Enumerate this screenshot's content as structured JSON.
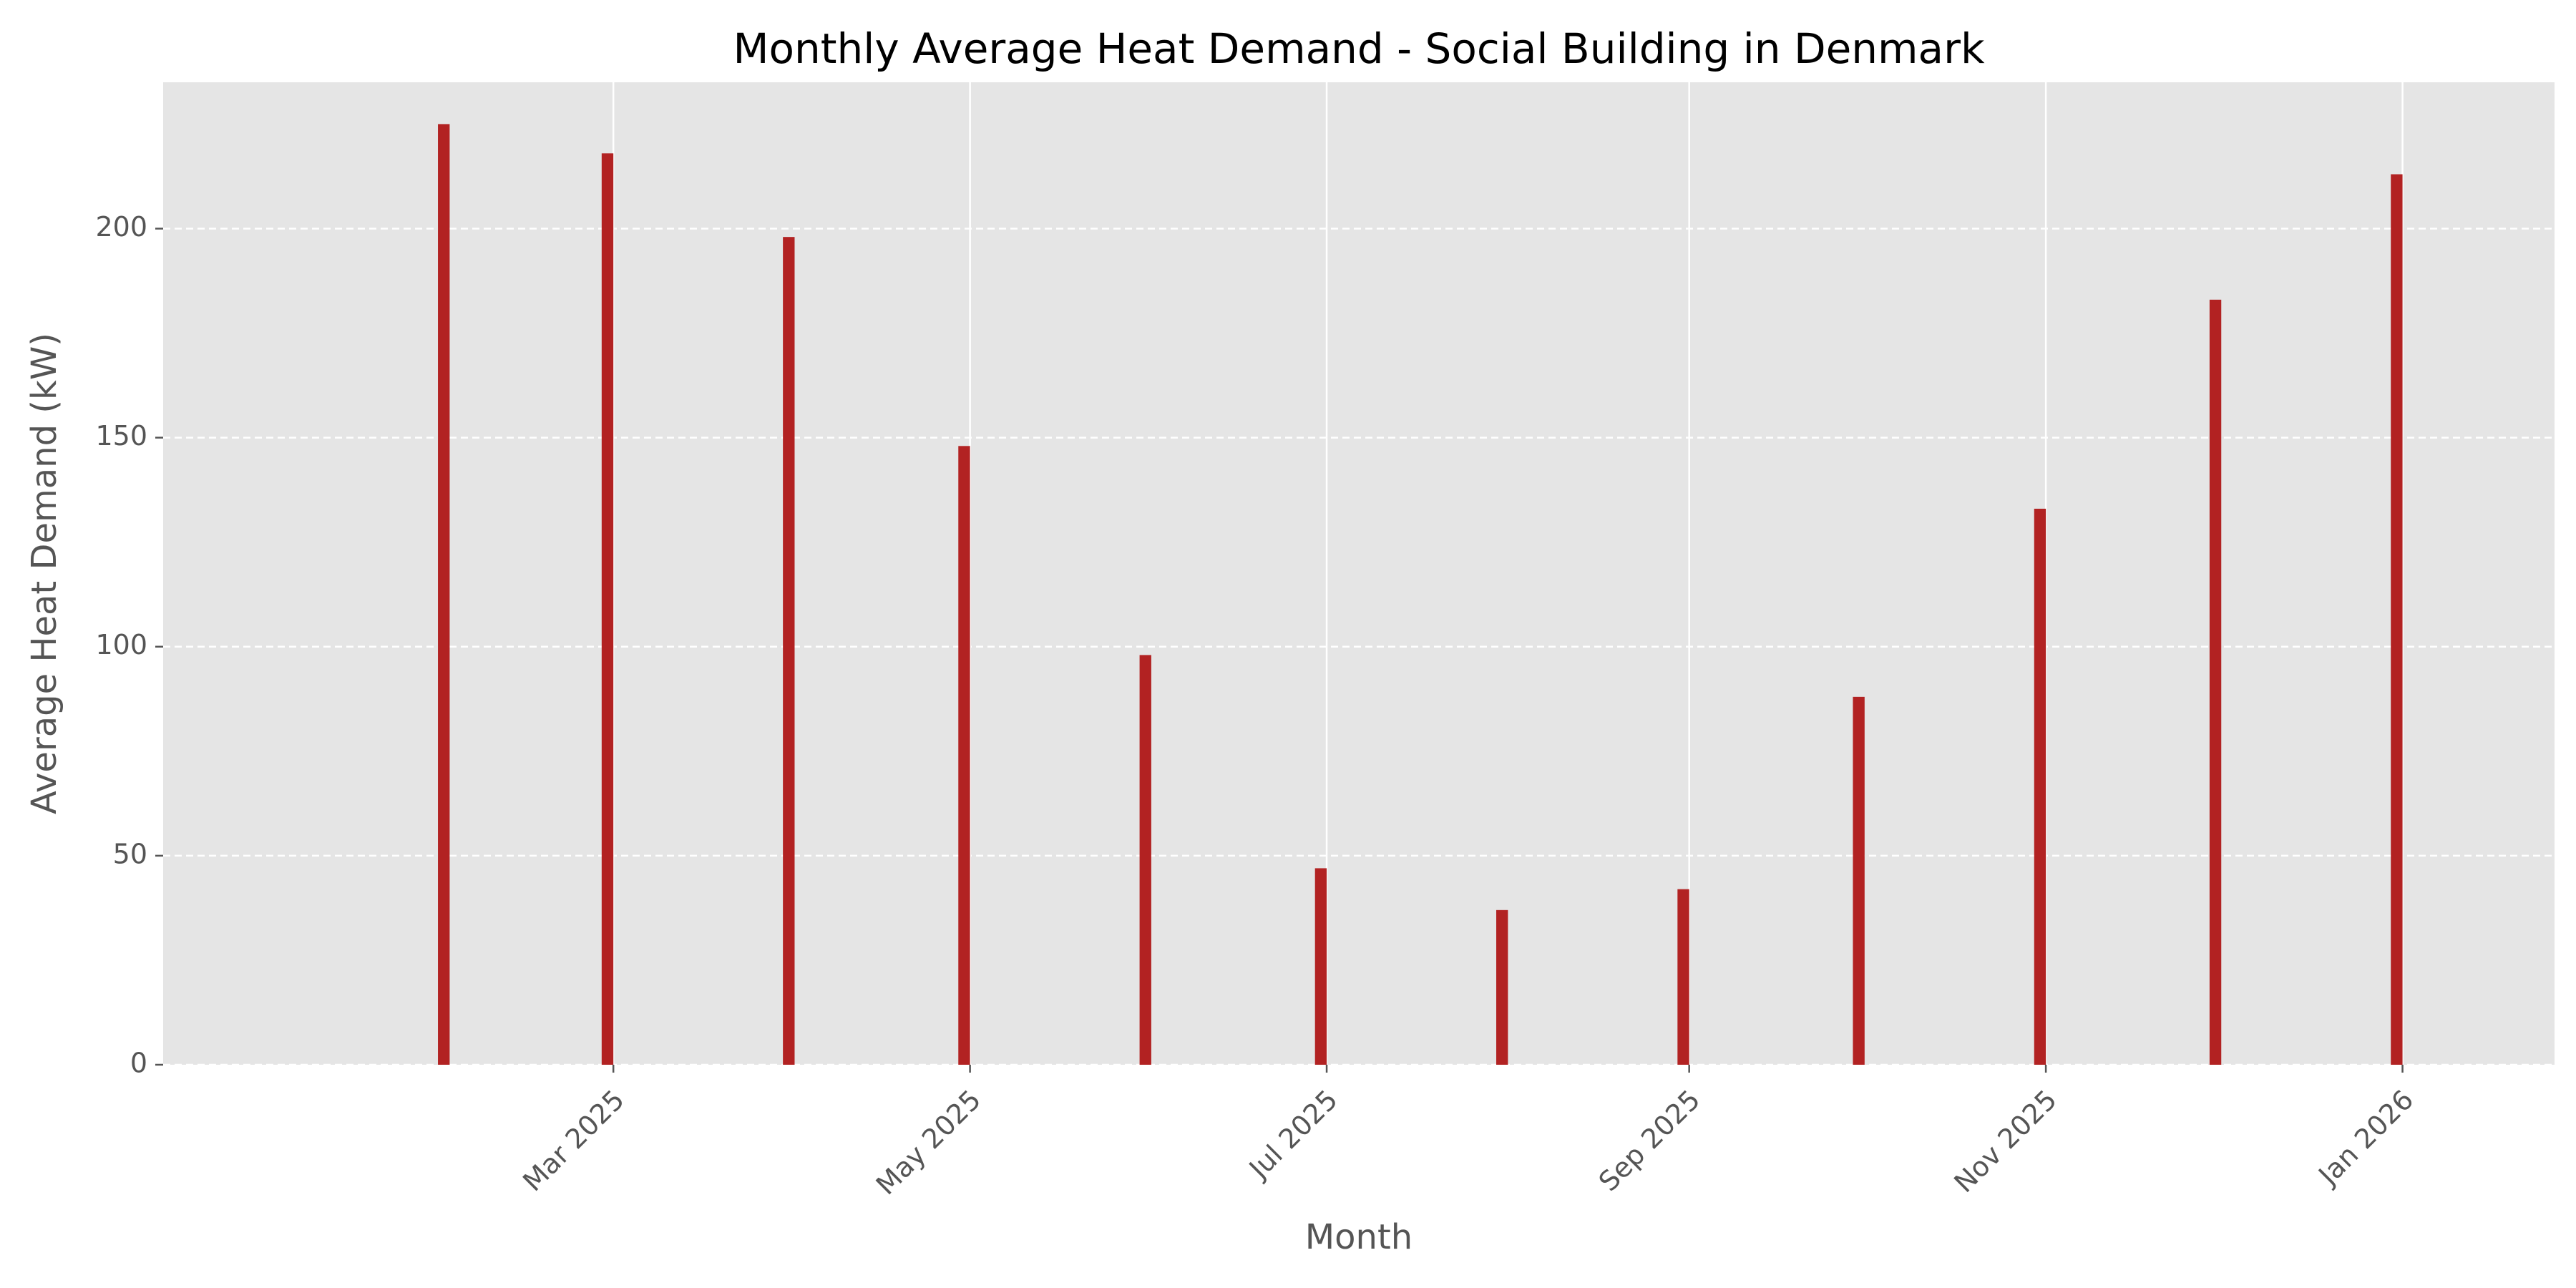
{
  "chart_data": {
    "type": "bar",
    "title": "Monthly Average Heat Demand - Social Building in Denmark",
    "xlabel": "Month",
    "ylabel": "Average Heat Demand (kW)",
    "x_axis_type": "date",
    "xlim": [
      "2024-12-14",
      "2026-01-27"
    ],
    "ylim": [
      0,
      235
    ],
    "x_tick_values": [
      "2025-03-01",
      "2025-05-01",
      "2025-07-01",
      "2025-09-01",
      "2025-11-01",
      "2026-01-01"
    ],
    "x_tick_labels": [
      "Mar 2025",
      "May 2025",
      "Jul 2025",
      "Sep 2025",
      "Nov 2025",
      "Jan 2026"
    ],
    "y_ticks": [
      0,
      50,
      100,
      150,
      200
    ],
    "grid": true,
    "legend": "none",
    "bar_color": "#b22222",
    "x": [
      "2025-01-31",
      "2025-02-28",
      "2025-03-31",
      "2025-04-30",
      "2025-05-31",
      "2025-06-30",
      "2025-07-31",
      "2025-08-31",
      "2025-09-30",
      "2025-10-31",
      "2025-11-30",
      "2025-12-31"
    ],
    "values": [
      225,
      218,
      198,
      148,
      98,
      47,
      37,
      42,
      88,
      133,
      183,
      213
    ]
  }
}
